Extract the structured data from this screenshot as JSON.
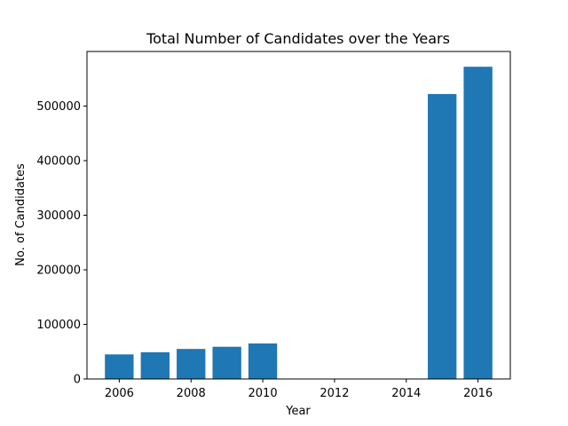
{
  "chart_data": {
    "type": "bar",
    "title": "Total Number of Candidates over the Years",
    "xlabel": "Year",
    "ylabel": "No. of Candidates",
    "x": [
      2006,
      2007,
      2008,
      2009,
      2010,
      2015,
      2016
    ],
    "values": [
      45000,
      49000,
      55000,
      59000,
      65000,
      522000,
      572000
    ],
    "xlim": [
      2005.1,
      2016.9
    ],
    "ylim": [
      0,
      600000
    ],
    "xticks": [
      2006,
      2008,
      2010,
      2012,
      2014,
      2016
    ],
    "yticks": [
      0,
      100000,
      200000,
      300000,
      400000,
      500000
    ],
    "bar_color": "#1f77b4",
    "grid": false
  }
}
